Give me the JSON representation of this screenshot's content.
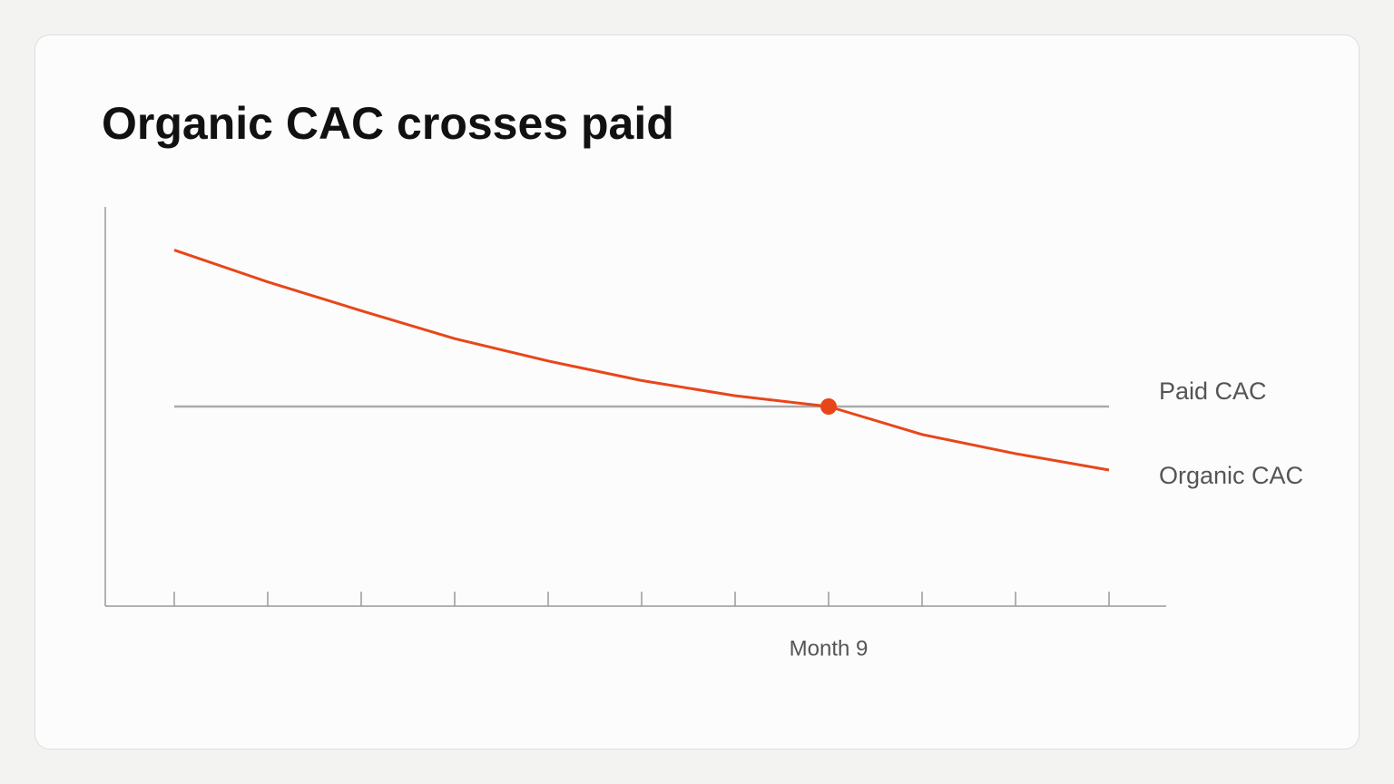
{
  "chart_data": {
    "type": "line",
    "title": "Organic CAC crosses paid",
    "categories": [
      null,
      null,
      null,
      null,
      null,
      null,
      null,
      "Month 9",
      null,
      null,
      null
    ],
    "series": [
      {
        "name": "Paid CAC",
        "color": "#a9a9a9",
        "values": [
          50,
          50,
          50,
          50,
          50,
          50,
          50,
          50,
          50,
          50,
          50
        ]
      },
      {
        "name": "Organic CAC",
        "color": "#e8461a",
        "values": [
          89.2,
          81.2,
          74.0,
          67.0,
          61.4,
          56.5,
          52.7,
          50,
          43.0,
          38.2,
          34.1
        ]
      }
    ],
    "highlight": {
      "series": 1,
      "index": 7
    },
    "ylim": [
      0,
      100
    ]
  }
}
